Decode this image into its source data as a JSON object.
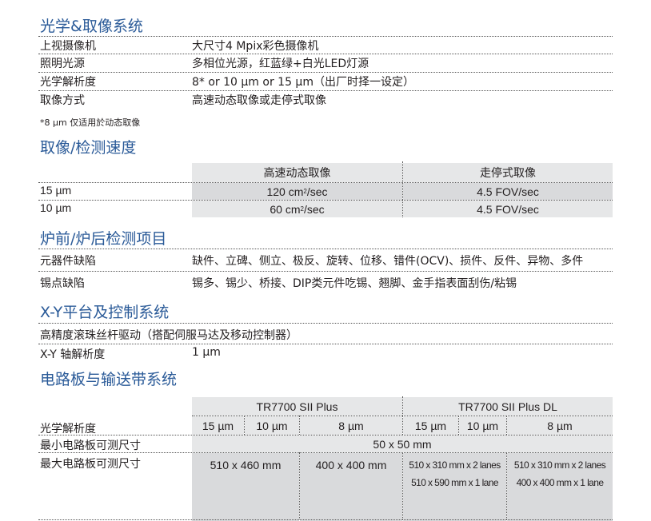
{
  "s1": {
    "title": "光学&取像系统",
    "rows": [
      {
        "label": "上视摄像机",
        "value": "大尺寸4 Mpix彩色摄像机"
      },
      {
        "label": "照明光源",
        "value": "多相位光源，红蓝绿+白光LED灯源"
      },
      {
        "label": "光学解析度",
        "value": "8* or 10 µm or 15 µm（出厂时择一设定）"
      },
      {
        "label": "取像方式",
        "value": "高速动态取像或走停式取像"
      }
    ],
    "note": "*8 µm 仅适用於动态取像"
  },
  "s2": {
    "title": "取像/检测速度",
    "headers": [
      "高速动态取像",
      "走停式取像"
    ],
    "rows": [
      {
        "label": "15 µm",
        "dyn_num": "120 cm",
        "dyn_sup": "2",
        "dyn_unit": "/sec",
        "stop": "4.5 FOV/sec"
      },
      {
        "label": "10 µm",
        "dyn_num": "60 cm",
        "dyn_sup": "2",
        "dyn_unit": "/sec",
        "stop": "4.5 FOV/sec"
      }
    ]
  },
  "s3": {
    "title": "炉前/炉后检测项目",
    "rows": [
      {
        "label": "元器件缺陷",
        "value": "缺件、立碑、侧立、极反、旋转、位移、错件(OCV)、损件、反件、异物、多件"
      },
      {
        "label": "锡点缺陷",
        "value": "锡多、锡少、桥接、DIP类元件吃锡、翘脚、金手指表面刮伤/粘锡"
      }
    ]
  },
  "s4": {
    "title": "X-Y平台及控制系统",
    "rows": [
      {
        "label": "高精度滚珠丝杆驱动（搭配伺服马达及移动控制器）",
        "value": ""
      },
      {
        "label": "X-Y 轴解析度",
        "value": "1 µm"
      }
    ]
  },
  "s5": {
    "title": "电路板与输送带系统",
    "models": [
      "TR7700 SII Plus",
      "TR7700 SII Plus DL"
    ],
    "res_label": "光学解析度",
    "resolutions": [
      "15 µm",
      "10 µm",
      "8 µm",
      "15 µm",
      "10 µm",
      "8 µm"
    ],
    "min_label": "最小电路板可测尺寸",
    "min_value": "50 x 50 mm",
    "max_label": "最大电路板可测尺寸",
    "max_values": [
      "510 x 460 mm",
      "400 x 400 mm",
      [
        "510 x 310 mm x 2 lanes",
        "510 x 590 mm x 1 lane"
      ],
      [
        "510 x 310 mm x 2 lanes",
        "400 x 400 mm x 1 lane"
      ]
    ]
  },
  "colors": {
    "title": "#2a5a98",
    "cell_light": "#e6e7e8",
    "cell_dark": "#d9dadc"
  }
}
